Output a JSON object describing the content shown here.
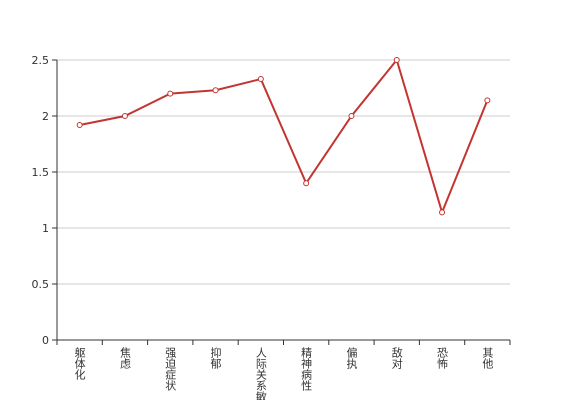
{
  "chart_data": {
    "type": "line",
    "categories": [
      "躯体化",
      "焦虑",
      "强迫症状",
      "抑郁",
      "人际关系敏感",
      "精神病性",
      "偏执",
      "敌对",
      "恐怖",
      "其他"
    ],
    "series": [
      {
        "color": "#c23531",
        "values": [
          1.92,
          2.0,
          2.2,
          2.23,
          2.33,
          1.4,
          2.0,
          2.5,
          1.14,
          2.14
        ]
      }
    ],
    "ylim": [
      0,
      2.5
    ],
    "yticks": [
      0,
      0.5,
      1,
      1.5,
      2,
      2.5
    ],
    "grid": true
  }
}
